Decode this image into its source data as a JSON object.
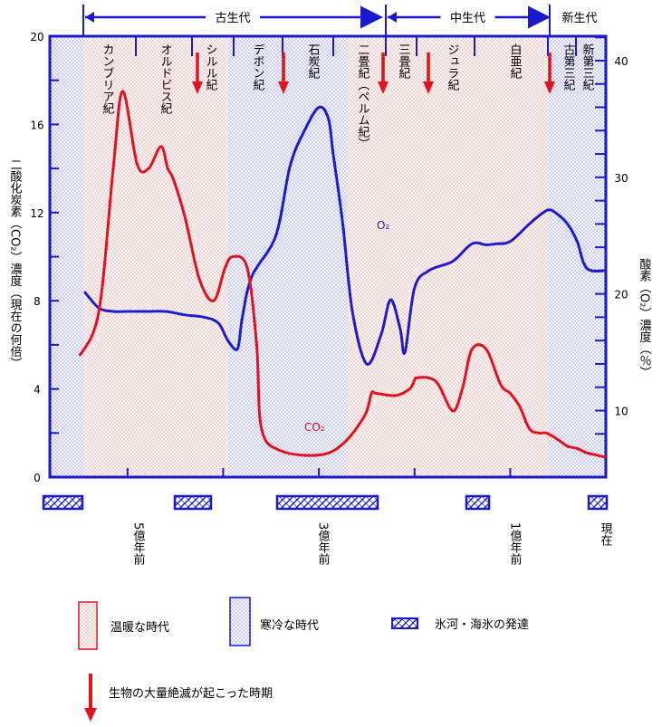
{
  "eras": [
    {
      "label": "古生代",
      "from": 545,
      "to": 248
    },
    {
      "label": "中生代",
      "from": 248,
      "to": 65
    },
    {
      "label": "新生代",
      "from": 65,
      "to": 0
    }
  ],
  "periods": [
    {
      "label": "カンブリア紀"
    },
    {
      "label": "オルドビス紀"
    },
    {
      "label": "シルル紀"
    },
    {
      "label": "デボン紀"
    },
    {
      "label": "石炭紀"
    },
    {
      "label": "二畳紀（ペルム紀）"
    },
    {
      "label": "三畳紀"
    },
    {
      "label": "ジュラ紀"
    },
    {
      "label": "白亜紀"
    },
    {
      "label": "古第三紀"
    },
    {
      "label": "新第三紀"
    }
  ],
  "left_axis": {
    "label": "二酸化炭素（CO₂）濃度（現在の何倍）",
    "ticks": [
      "0",
      "4",
      "8",
      "12",
      "16",
      "20"
    ]
  },
  "right_axis": {
    "label": "酸素（O₂）濃度（％）",
    "ticks": [
      "10",
      "20",
      "30",
      "40"
    ]
  },
  "time_labels": [
    {
      "label": "5億年前",
      "age": 500
    },
    {
      "label": "3億年前",
      "age": 300
    },
    {
      "label": "1億年前",
      "age": 100
    },
    {
      "label": "現在",
      "age": 0
    }
  ],
  "series_labels": {
    "co2": "CO₂",
    "o2": "O₂"
  },
  "legend": {
    "warm": "温暖な時代",
    "cold": "寒冷な時代",
    "ice": "氷河・海氷の発達",
    "extinction": "生物の大量絶滅が起こった時期"
  },
  "colors": {
    "warm": "#e0141e",
    "cold": "#1e1ec8",
    "frame": "#1a1acc"
  },
  "chart_data": {
    "type": "line",
    "x_unit": "million years ago",
    "xlim": [
      570,
      0
    ],
    "series": [
      {
        "name": "CO₂",
        "axis": "left",
        "x": [
          550,
          530,
          515,
          505,
          490,
          478,
          465,
          458,
          452,
          440,
          425,
          410,
          398,
          390,
          375,
          365,
          360,
          340,
          300,
          275,
          252,
          245,
          240,
          220,
          205,
          200,
          198,
          185,
          175,
          160,
          150,
          140,
          125,
          110,
          100,
          90,
          80,
          70,
          62,
          50,
          40,
          30,
          20,
          10,
          0
        ],
        "values": [
          5.5,
          7.5,
          14.0,
          17.5,
          14.2,
          14.0,
          15.0,
          14.0,
          13.5,
          11.8,
          9.0,
          8.0,
          9.5,
          10.0,
          9.5,
          6.0,
          2.2,
          1.2,
          1.0,
          1.5,
          2.8,
          3.8,
          3.8,
          3.7,
          4.0,
          4.4,
          4.5,
          4.5,
          4.2,
          3.0,
          4.0,
          5.8,
          5.8,
          4.2,
          3.8,
          3.2,
          2.2,
          2.0,
          2.0,
          1.7,
          1.4,
          1.3,
          1.1,
          1.0,
          0.9
        ]
      },
      {
        "name": "O₂",
        "axis": "right",
        "x": [
          545,
          530,
          515,
          500,
          480,
          460,
          440,
          420,
          405,
          395,
          385,
          380,
          370,
          345,
          330,
          315,
          300,
          290,
          285,
          275,
          265,
          250,
          235,
          225,
          215,
          210,
          200,
          185,
          160,
          140,
          125,
          115,
          100,
          80,
          65,
          58,
          50,
          40,
          30,
          20,
          0
        ],
        "values": [
          20.2,
          18.8,
          18.5,
          18.5,
          18.5,
          18.5,
          18.2,
          18.0,
          17.5,
          16.0,
          15.3,
          18.0,
          21.5,
          25.0,
          31.0,
          34.0,
          36.0,
          35.0,
          32.0,
          26.0,
          18.5,
          14.0,
          16.5,
          19.5,
          17.0,
          15.0,
          20.5,
          22.0,
          22.8,
          24.3,
          24.2,
          24.3,
          24.5,
          26.0,
          27.0,
          27.2,
          26.8,
          26.0,
          24.5,
          22.2,
          22.0
        ]
      }
    ],
    "warm_periods": [
      [
        545,
        395
      ],
      [
        270,
        60
      ]
    ],
    "cold_periods": [
      [
        395,
        270
      ],
      [
        60,
        0
      ]
    ],
    "ice_ages": [
      [
        570,
        545
      ],
      [
        445,
        420
      ],
      [
        340,
        260
      ],
      [
        170,
        140
      ],
      [
        20,
        0
      ]
    ],
    "extinctions": [
      440,
      367,
      251,
      205,
      65
    ],
    "left_ylim": [
      0,
      20
    ],
    "right_ylim": [
      5,
      43
    ]
  }
}
